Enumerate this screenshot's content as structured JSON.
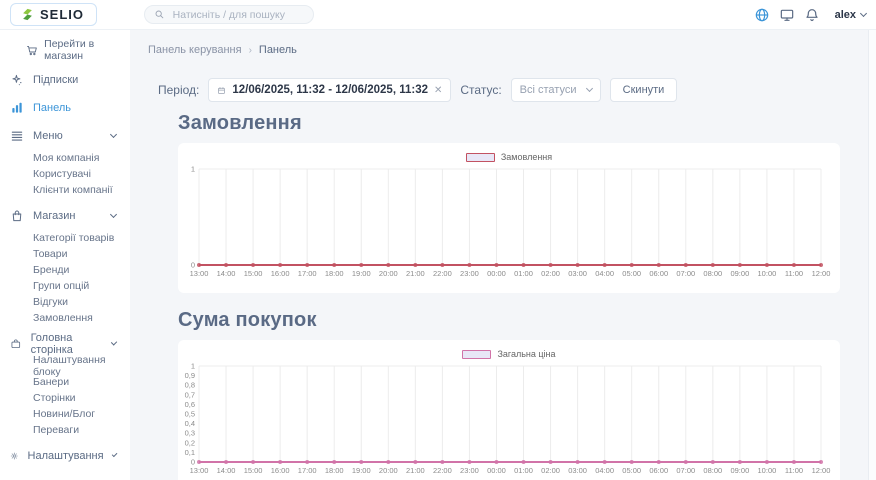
{
  "topbar": {
    "logo_text": "SELIO",
    "search_placeholder": "Натисніть / для пошуку",
    "user_name": "alex"
  },
  "sidebar": {
    "store_link": "Перейти в магазин",
    "sections": [
      {
        "label": "Підписки",
        "icon": "sparkles-icon",
        "chevron": false,
        "active": false,
        "children": []
      },
      {
        "label": "Панель",
        "icon": "bar-chart-icon",
        "chevron": false,
        "active": true,
        "children": []
      },
      {
        "label": "Меню",
        "icon": "menu-icon",
        "chevron": true,
        "active": false,
        "children": [
          "Моя компанія",
          "Користувачі",
          "Клієнти компанії"
        ]
      },
      {
        "label": "Магазин",
        "icon": "bag-icon",
        "chevron": true,
        "active": false,
        "children": [
          "Категорії товарів",
          "Товари",
          "Бренди",
          "Групи опцій",
          "Відгуки",
          "Замовлення"
        ]
      },
      {
        "label": "Головна сторінка",
        "icon": "briefcase-icon",
        "chevron": true,
        "active": false,
        "children": [
          "Налаштування блоку",
          "Банери",
          "Сторінки",
          "Новини/Блог",
          "Переваги"
        ]
      },
      {
        "label": "Налаштування",
        "icon": "gear-icon",
        "chevron": true,
        "active": false,
        "children": []
      }
    ]
  },
  "breadcrumb": {
    "root": "Панель керування",
    "separator": "›",
    "current": "Панель"
  },
  "filters": {
    "period_label": "Період:",
    "period_value": "12/06/2025, 11:32 - 12/06/2025, 11:32",
    "status_label": "Статус:",
    "status_value": "Всі статуси",
    "reset_label": "Скинути"
  },
  "chart_data": [
    {
      "type": "line",
      "title": "Замовлення",
      "legend": "Замовлення",
      "color": "#c25262",
      "swatch_fill": "#e8e7f7",
      "x": [
        "13:00",
        "14:00",
        "15:00",
        "16:00",
        "17:00",
        "18:00",
        "19:00",
        "20:00",
        "21:00",
        "22:00",
        "23:00",
        "00:00",
        "01:00",
        "02:00",
        "03:00",
        "04:00",
        "05:00",
        "06:00",
        "07:00",
        "08:00",
        "09:00",
        "10:00",
        "11:00",
        "12:00"
      ],
      "values": [
        0,
        0,
        0,
        0,
        0,
        0,
        0,
        0,
        0,
        0,
        0,
        0,
        0,
        0,
        0,
        0,
        0,
        0,
        0,
        0,
        0,
        0,
        0,
        0
      ],
      "ylim": [
        0,
        1
      ],
      "yticks": [
        "1",
        "0"
      ],
      "grid": true,
      "legend_position": "top-center"
    },
    {
      "type": "line",
      "title": "Сума покупок",
      "legend": "Загальна ціна",
      "color": "#d173a8",
      "swatch_fill": "#e8e7f7",
      "x": [
        "13:00",
        "14:00",
        "15:00",
        "16:00",
        "17:00",
        "18:00",
        "19:00",
        "20:00",
        "21:00",
        "22:00",
        "23:00",
        "00:00",
        "01:00",
        "02:00",
        "03:00",
        "04:00",
        "05:00",
        "06:00",
        "07:00",
        "08:00",
        "09:00",
        "10:00",
        "11:00",
        "12:00"
      ],
      "values": [
        0,
        0,
        0,
        0,
        0,
        0,
        0,
        0,
        0,
        0,
        0,
        0,
        0,
        0,
        0,
        0,
        0,
        0,
        0,
        0,
        0,
        0,
        0,
        0
      ],
      "ylim": [
        0,
        1
      ],
      "yticks": [
        "1",
        "0,9",
        "0,8",
        "0,7",
        "0,6",
        "0,5",
        "0,4",
        "0,3",
        "0,2",
        "0,1",
        "0"
      ],
      "grid": true,
      "legend_position": "top-center"
    }
  ]
}
